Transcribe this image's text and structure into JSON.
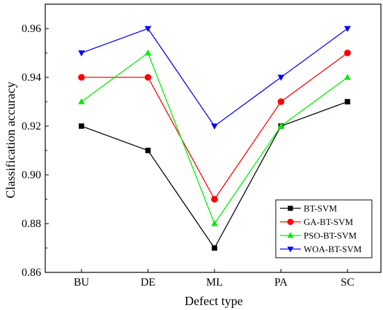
{
  "chart_data": {
    "type": "line",
    "categories": [
      "BU",
      "DE",
      "ML",
      "PA",
      "SC"
    ],
    "xlabel": "Defect type",
    "ylabel": "Classification accuracy",
    "ylim": [
      0.86,
      0.97
    ],
    "yticks": [
      0.86,
      0.88,
      0.9,
      0.92,
      0.94,
      0.96
    ],
    "ytick_labels": [
      "0.86",
      "0.88",
      "0.90",
      "0.92",
      "0.94",
      "0.96"
    ],
    "grid": false,
    "legend_position": "bottom-right",
    "series": [
      {
        "name": "BT-SVM",
        "values": [
          0.92,
          0.91,
          0.87,
          0.92,
          0.93
        ],
        "color": "#000000",
        "marker": "square"
      },
      {
        "name": "GA-BT-SVM",
        "values": [
          0.94,
          0.94,
          0.89,
          0.93,
          0.95
        ],
        "color": "#ff0000",
        "marker": "circle"
      },
      {
        "name": "PSO-BT-SVM",
        "values": [
          0.93,
          0.95,
          0.88,
          0.92,
          0.94
        ],
        "color": "#00ee00",
        "marker": "triangle-up"
      },
      {
        "name": "WOA-BT-SVM",
        "values": [
          0.95,
          0.96,
          0.92,
          0.94,
          0.96
        ],
        "color": "#0000ff",
        "marker": "triangle-down"
      }
    ]
  }
}
